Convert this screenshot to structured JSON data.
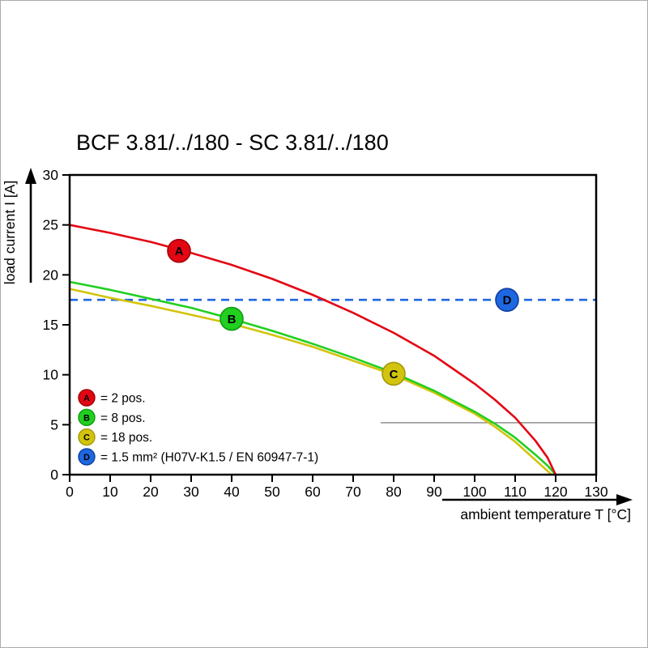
{
  "chart_data": {
    "type": "line",
    "title": "BCF 3.81/../180 - SC 3.81/../180",
    "xlabel": "ambient temperature T [°C]",
    "ylabel": "load current I [A]",
    "xlim": [
      0,
      130
    ],
    "ylim": [
      0,
      30
    ],
    "xticks": [
      0,
      10,
      20,
      30,
      40,
      50,
      60,
      70,
      80,
      90,
      100,
      110,
      120,
      130
    ],
    "yticks": [
      0,
      5,
      10,
      15,
      20,
      25,
      30
    ],
    "grid": false,
    "legend_position": "lower-left-inside",
    "reference_line": {
      "y": 5.2,
      "color": "#8f8f8f"
    },
    "series": [
      {
        "name": "A",
        "legend": "= 2 pos.",
        "color": "#e30613",
        "edge": "#a30007",
        "dash": null,
        "marker": {
          "x": 27,
          "y": 22.4
        },
        "x": [
          0,
          5,
          10,
          15,
          20,
          25,
          30,
          35,
          40,
          45,
          50,
          55,
          60,
          65,
          70,
          75,
          80,
          85,
          90,
          95,
          100,
          105,
          110,
          115,
          118,
          120
        ],
        "y": [
          25,
          24.6,
          24.2,
          23.75,
          23.3,
          22.75,
          22.2,
          21.6,
          21,
          20.3,
          19.6,
          18.8,
          18,
          17.1,
          16.2,
          15.2,
          14.2,
          13.05,
          11.9,
          10.5,
          9.1,
          7.5,
          5.7,
          3.4,
          1.7,
          0
        ]
      },
      {
        "name": "B",
        "legend": "= 8 pos.",
        "color": "#21cf21",
        "edge": "#0e9c0e",
        "dash": null,
        "marker": {
          "x": 40,
          "y": 15.6
        },
        "x": [
          0,
          5,
          10,
          15,
          20,
          25,
          30,
          35,
          40,
          45,
          50,
          55,
          60,
          65,
          70,
          75,
          80,
          85,
          90,
          95,
          100,
          105,
          110,
          115,
          118,
          120
        ],
        "y": [
          19.3,
          18.9,
          18.5,
          18.05,
          17.6,
          17.15,
          16.7,
          16.15,
          15.6,
          15,
          14.4,
          13.75,
          13.1,
          12.4,
          11.7,
          10.95,
          10.2,
          9.3,
          8.4,
          7.35,
          6.3,
          5.1,
          3.7,
          2,
          0.9,
          0
        ]
      },
      {
        "name": "C",
        "legend": "= 18 pos.",
        "color": "#d2c40c",
        "edge": "#a3980a",
        "dash": null,
        "marker": {
          "x": 80,
          "y": 10.1
        },
        "x": [
          0,
          5,
          10,
          15,
          20,
          25,
          30,
          35,
          40,
          45,
          50,
          55,
          60,
          65,
          70,
          75,
          80,
          85,
          90,
          95,
          100,
          105,
          110,
          113,
          116,
          119
        ],
        "y": [
          18.6,
          18.15,
          17.7,
          17.3,
          16.9,
          16.45,
          16,
          15.55,
          15.1,
          14.55,
          14,
          13.4,
          12.8,
          12.1,
          11.4,
          10.7,
          10,
          9.1,
          8.2,
          7.15,
          6.1,
          4.8,
          3.3,
          2.2,
          1.1,
          0
        ]
      },
      {
        "name": "D",
        "legend": "= 1.5 mm² (H07V-K1.5 / EN 60947-7-1)",
        "color": "#1f67e0",
        "edge": "#0c3fa0",
        "dash": "10 7",
        "marker": {
          "x": 108,
          "y": 17.5
        },
        "x": [
          0,
          130
        ],
        "y": [
          17.5,
          17.5
        ]
      }
    ]
  }
}
